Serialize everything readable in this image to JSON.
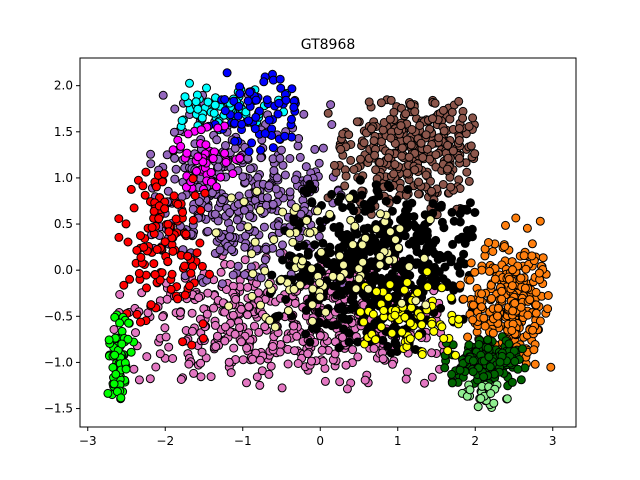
{
  "chart_data": {
    "type": "scatter",
    "title": "GT8968",
    "xlabel": "",
    "ylabel": "",
    "xlim": [
      -3.1,
      3.3
    ],
    "ylim": [
      -1.7,
      2.3
    ],
    "x_ticks": [
      -3,
      -2,
      -1,
      0,
      1,
      2,
      3
    ],
    "y_ticks": [
      -1.5,
      -1.0,
      -0.5,
      0.0,
      0.5,
      1.0,
      1.5,
      2.0
    ],
    "x_tick_labels": [
      "−3",
      "−2",
      "−1",
      "0",
      "1",
      "2",
      "3"
    ],
    "y_tick_labels": [
      "−1.5",
      "−1.0",
      "−0.5",
      "0.0",
      "0.5",
      "1.0",
      "1.5",
      "2.0"
    ],
    "grid": false,
    "legend": "none",
    "marker_edge_color": "#000000",
    "clusters": [
      {
        "color": "#e377c2",
        "count": 520,
        "center": [
          -0.3,
          -0.6
        ],
        "spread": [
          1.1,
          0.35
        ],
        "range": [
          -2.7,
          1.6,
          -1.3,
          0.3
        ]
      },
      {
        "color": "#9467bd",
        "count": 420,
        "center": [
          -1.1,
          0.75
        ],
        "spread": [
          0.7,
          0.45
        ],
        "range": [
          -2.2,
          0.3,
          -0.2,
          1.9
        ]
      },
      {
        "color": "#8c564b",
        "count": 340,
        "center": [
          1.2,
          1.3
        ],
        "spread": [
          0.55,
          0.35
        ],
        "range": [
          0.0,
          2.0,
          0.6,
          1.85
        ]
      },
      {
        "color": "#000000",
        "count": 520,
        "center": [
          0.75,
          0.0
        ],
        "spread": [
          0.65,
          0.45
        ],
        "range": [
          -0.7,
          2.0,
          -0.9,
          1.0
        ]
      },
      {
        "color": "#ff7f0e",
        "count": 300,
        "center": [
          2.45,
          -0.35
        ],
        "spread": [
          0.28,
          0.35
        ],
        "range": [
          1.8,
          3.0,
          -1.1,
          0.9
        ]
      },
      {
        "color": "#006400",
        "count": 160,
        "center": [
          2.15,
          -1.0
        ],
        "spread": [
          0.25,
          0.12
        ],
        "range": [
          1.6,
          2.7,
          -1.3,
          -0.6
        ]
      },
      {
        "color": "#90ee90",
        "count": 30,
        "center": [
          2.1,
          -1.35
        ],
        "spread": [
          0.2,
          0.08
        ],
        "range": [
          1.8,
          2.5,
          -1.55,
          -1.1
        ]
      },
      {
        "color": "#00ffff",
        "count": 70,
        "center": [
          -1.3,
          1.75
        ],
        "spread": [
          0.45,
          0.12
        ],
        "range": [
          -1.8,
          -0.4,
          1.2,
          2.1
        ]
      },
      {
        "color": "#0000ff",
        "count": 70,
        "center": [
          -0.75,
          1.7
        ],
        "spread": [
          0.35,
          0.2
        ],
        "range": [
          -1.6,
          -0.3,
          1.0,
          2.15
        ]
      },
      {
        "color": "#ff00ff",
        "count": 50,
        "center": [
          -1.55,
          1.2
        ],
        "spread": [
          0.25,
          0.2
        ],
        "range": [
          -2.0,
          -1.0,
          0.8,
          1.8
        ]
      },
      {
        "color": "#ff0000",
        "count": 130,
        "center": [
          -2.05,
          0.35
        ],
        "spread": [
          0.3,
          0.45
        ],
        "range": [
          -2.7,
          -1.4,
          -0.9,
          1.1
        ]
      },
      {
        "color": "#00ff00",
        "count": 70,
        "center": [
          -2.6,
          -0.95
        ],
        "spread": [
          0.08,
          0.25
        ],
        "range": [
          -2.75,
          -2.35,
          -1.4,
          -0.3
        ]
      },
      {
        "color": "#ffff00",
        "count": 70,
        "center": [
          1.2,
          -0.55
        ],
        "spread": [
          0.4,
          0.3
        ],
        "range": [
          0.5,
          1.8,
          -0.95,
          0.0
        ]
      },
      {
        "color": "#f5f5a0",
        "count": 90,
        "center": [
          0.2,
          0.2
        ],
        "spread": [
          0.9,
          0.5
        ],
        "range": [
          -1.5,
          1.5,
          -0.7,
          1.0
        ]
      }
    ]
  }
}
